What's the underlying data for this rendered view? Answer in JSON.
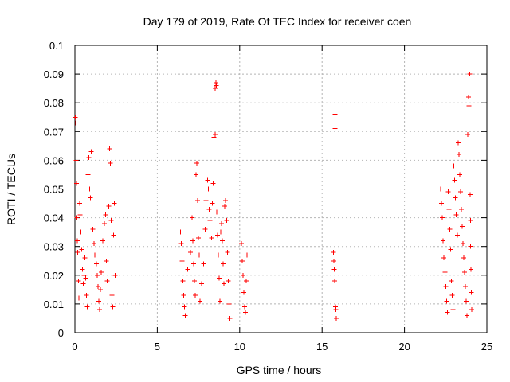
{
  "chart_data": {
    "type": "scatter",
    "title": "Day 179 of 2019, Rate Of TEC Index for receiver coen",
    "xlabel": "GPS time / hours",
    "ylabel": "ROTI / TECUs",
    "xlim": [
      0,
      25
    ],
    "ylim": [
      0,
      0.1
    ],
    "x_ticks": [
      "0",
      "5",
      "10",
      "15",
      "20",
      "25"
    ],
    "y_ticks": [
      "0",
      "0.01",
      "0.02",
      "0.03",
      "0.04",
      "0.05",
      "0.06",
      "0.07",
      "0.08",
      "0.09",
      "0.1"
    ],
    "grid": true,
    "marker": "+",
    "series_color": "#ff0000",
    "series": [
      {
        "points": [
          [
            0.02,
            0.075
          ],
          [
            0.05,
            0.073
          ],
          [
            0.07,
            0.06
          ],
          [
            0.1,
            0.052
          ],
          [
            0.12,
            0.04
          ],
          [
            0.15,
            0.032
          ],
          [
            0.18,
            0.028
          ],
          [
            0.22,
            0.018
          ],
          [
            0.25,
            0.012
          ],
          [
            0.28,
            0.045
          ],
          [
            0.32,
            0.041
          ],
          [
            0.36,
            0.035
          ],
          [
            0.4,
            0.029
          ],
          [
            0.45,
            0.022
          ],
          [
            0.5,
            0.017
          ],
          [
            0.55,
            0.02
          ],
          [
            0.6,
            0.026
          ],
          [
            0.65,
            0.019
          ],
          [
            0.7,
            0.013
          ],
          [
            0.75,
            0.009
          ],
          [
            0.8,
            0.055
          ],
          [
            0.85,
            0.061
          ],
          [
            0.9,
            0.05
          ],
          [
            0.95,
            0.047
          ],
          [
            1.0,
            0.063
          ],
          [
            1.05,
            0.042
          ],
          [
            1.1,
            0.036
          ],
          [
            1.15,
            0.031
          ],
          [
            1.2,
            0.027
          ],
          [
            1.3,
            0.024
          ],
          [
            1.35,
            0.02
          ],
          [
            1.4,
            0.016
          ],
          [
            1.45,
            0.011
          ],
          [
            1.5,
            0.008
          ],
          [
            1.55,
            0.015
          ],
          [
            1.6,
            0.021
          ],
          [
            1.7,
            0.032
          ],
          [
            1.8,
            0.038
          ],
          [
            1.85,
            0.041
          ],
          [
            1.9,
            0.025
          ],
          [
            1.95,
            0.018
          ],
          [
            2.05,
            0.044
          ],
          [
            2.1,
            0.064
          ],
          [
            2.15,
            0.059
          ],
          [
            2.2,
            0.039
          ],
          [
            2.25,
            0.013
          ],
          [
            2.3,
            0.009
          ],
          [
            2.35,
            0.034
          ],
          [
            2.4,
            0.045
          ],
          [
            2.45,
            0.02
          ],
          [
            6.4,
            0.035
          ],
          [
            6.45,
            0.031
          ],
          [
            6.5,
            0.025
          ],
          [
            6.55,
            0.018
          ],
          [
            6.6,
            0.013
          ],
          [
            6.65,
            0.009
          ],
          [
            6.7,
            0.006
          ],
          [
            6.85,
            0.022
          ],
          [
            7.0,
            0.028
          ],
          [
            7.1,
            0.04
          ],
          [
            7.15,
            0.032
          ],
          [
            7.2,
            0.024
          ],
          [
            7.25,
            0.018
          ],
          [
            7.3,
            0.013
          ],
          [
            7.35,
            0.055
          ],
          [
            7.4,
            0.059
          ],
          [
            7.45,
            0.046
          ],
          [
            7.5,
            0.033
          ],
          [
            7.55,
            0.027
          ],
          [
            7.6,
            0.011
          ],
          [
            7.7,
            0.017
          ],
          [
            7.8,
            0.024
          ],
          [
            7.9,
            0.036
          ],
          [
            7.95,
            0.046
          ],
          [
            8.05,
            0.053
          ],
          [
            8.1,
            0.05
          ],
          [
            8.15,
            0.043
          ],
          [
            8.2,
            0.039
          ],
          [
            8.3,
            0.033
          ],
          [
            8.35,
            0.045
          ],
          [
            8.4,
            0.052
          ],
          [
            8.45,
            0.068
          ],
          [
            8.5,
            0.069
          ],
          [
            8.52,
            0.085
          ],
          [
            8.55,
            0.087
          ],
          [
            8.58,
            0.086
          ],
          [
            8.6,
            0.042
          ],
          [
            8.65,
            0.034
          ],
          [
            8.7,
            0.027
          ],
          [
            8.75,
            0.019
          ],
          [
            8.8,
            0.011
          ],
          [
            8.85,
            0.035
          ],
          [
            8.9,
            0.038
          ],
          [
            8.95,
            0.032
          ],
          [
            9.0,
            0.024
          ],
          [
            9.05,
            0.017
          ],
          [
            9.1,
            0.044
          ],
          [
            9.15,
            0.046
          ],
          [
            9.2,
            0.039
          ],
          [
            9.25,
            0.028
          ],
          [
            9.3,
            0.018
          ],
          [
            9.35,
            0.01
          ],
          [
            9.4,
            0.005
          ],
          [
            10.1,
            0.031
          ],
          [
            10.15,
            0.025
          ],
          [
            10.2,
            0.02
          ],
          [
            10.25,
            0.014
          ],
          [
            10.3,
            0.009
          ],
          [
            10.35,
            0.007
          ],
          [
            10.4,
            0.018
          ],
          [
            10.45,
            0.027
          ],
          [
            15.7,
            0.028
          ],
          [
            15.72,
            0.025
          ],
          [
            15.74,
            0.022
          ],
          [
            15.76,
            0.018
          ],
          [
            15.78,
            0.076
          ],
          [
            15.8,
            0.071
          ],
          [
            15.82,
            0.009
          ],
          [
            15.84,
            0.008
          ],
          [
            15.86,
            0.005
          ],
          [
            22.2,
            0.05
          ],
          [
            22.25,
            0.045
          ],
          [
            22.3,
            0.04
          ],
          [
            22.35,
            0.032
          ],
          [
            22.4,
            0.026
          ],
          [
            22.45,
            0.021
          ],
          [
            22.5,
            0.016
          ],
          [
            22.55,
            0.011
          ],
          [
            22.6,
            0.007
          ],
          [
            22.65,
            0.049
          ],
          [
            22.7,
            0.043
          ],
          [
            22.75,
            0.036
          ],
          [
            22.8,
            0.029
          ],
          [
            22.85,
            0.018
          ],
          [
            22.9,
            0.013
          ],
          [
            22.95,
            0.008
          ],
          [
            23.0,
            0.058
          ],
          [
            23.05,
            0.053
          ],
          [
            23.1,
            0.047
          ],
          [
            23.15,
            0.041
          ],
          [
            23.2,
            0.034
          ],
          [
            23.25,
            0.066
          ],
          [
            23.3,
            0.062
          ],
          [
            23.35,
            0.055
          ],
          [
            23.4,
            0.049
          ],
          [
            23.45,
            0.043
          ],
          [
            23.5,
            0.037
          ],
          [
            23.55,
            0.031
          ],
          [
            23.6,
            0.026
          ],
          [
            23.65,
            0.021
          ],
          [
            23.7,
            0.016
          ],
          [
            23.75,
            0.011
          ],
          [
            23.8,
            0.006
          ],
          [
            23.85,
            0.069
          ],
          [
            23.88,
            0.082
          ],
          [
            23.92,
            0.079
          ],
          [
            23.95,
            0.09
          ],
          [
            23.98,
            0.048
          ],
          [
            24.0,
            0.039
          ],
          [
            24.02,
            0.03
          ],
          [
            24.04,
            0.022
          ],
          [
            24.06,
            0.014
          ],
          [
            24.08,
            0.008
          ]
        ]
      }
    ]
  }
}
